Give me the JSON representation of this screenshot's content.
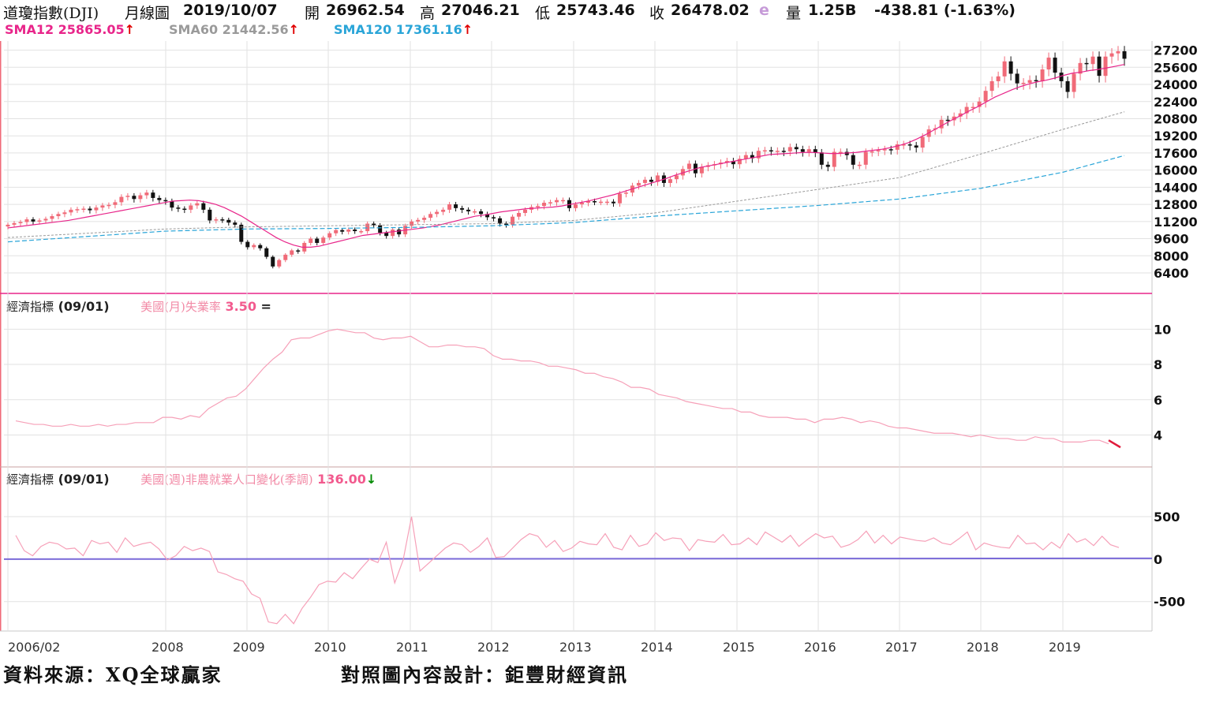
{
  "header": {
    "symbol": "道瓊指數(DJI)",
    "period": "月線圖",
    "date": "2019/10/07",
    "open_label": "開",
    "open": "26962.54",
    "high_label": "高",
    "high": "27046.21",
    "low_label": "低",
    "low": "25743.46",
    "close_label": "收",
    "close": "26478.02",
    "close_flag": "e",
    "volume_label": "量",
    "volume": "1.25B",
    "change": "-438.81 (-1.63%)"
  },
  "sma": [
    {
      "label": "SMA12 25865.05",
      "arrow": "↑",
      "color": "#e8258a"
    },
    {
      "label": "SMA60 21442.56",
      "arrow": "↑",
      "color": "#9a9a9a"
    },
    {
      "label": "SMA120 17361.16",
      "arrow": "↑",
      "color": "#2aa5d8"
    }
  ],
  "panel2": {
    "title": "經濟指標",
    "date": "(09/01)",
    "series": "美國(月)失業率",
    "value": "3.50",
    "mark": "="
  },
  "panel3": {
    "title": "經濟指標",
    "date": "(09/01)",
    "series": "美國(週)非農就業人口變化(季調)",
    "value": "136.00",
    "arrow": "↓"
  },
  "footer": {
    "source": "資料來源：XQ全球贏家",
    "design": "對照圖內容設計：鉅豐財經資訊"
  },
  "colors": {
    "up_candle": "#f06a78",
    "down_candle": "#111111",
    "sma12": "#e8258a",
    "sma60": "#9a9a9a",
    "sma120": "#2aa5d8",
    "indicator": "#f6a0b8",
    "zero_line": "#7a6ad8",
    "grid": "#e2e2e2"
  },
  "chart_data": [
    {
      "type": "candlestick",
      "title": "道瓊指數(DJI) 月線圖",
      "x": [
        "2006/02",
        "2008",
        "2009",
        "2010",
        "2011",
        "2012",
        "2013",
        "2014",
        "2015",
        "2016",
        "2017",
        "2018",
        "2019"
      ],
      "y_ticks": [
        6400,
        8000,
        9600,
        11200,
        12800,
        14400,
        16000,
        17600,
        19200,
        20800,
        22400,
        24000,
        25600,
        27200
      ],
      "ylim": [
        5000,
        28200
      ],
      "grid": true,
      "series": [
        {
          "name": "SMA12",
          "value": 25865.05
        },
        {
          "name": "SMA60",
          "value": 21442.56
        },
        {
          "name": "SMA120",
          "value": 17361.16
        }
      ],
      "closes": [
        10900,
        11050,
        11150,
        11400,
        11200,
        11300,
        11450,
        11700,
        11900,
        12050,
        12300,
        12350,
        12400,
        12250,
        12500,
        12700,
        12750,
        13000,
        13500,
        13600,
        13300,
        13650,
        13900,
        13400,
        13200,
        13100,
        12500,
        12400,
        12300,
        12700,
        12900,
        12300,
        11300,
        11400,
        11350,
        11100,
        10900,
        9300,
        8800,
        9000,
        8700,
        7900,
        7000,
        7600,
        8100,
        8500,
        8400,
        9200,
        9600,
        9200,
        9700,
        10100,
        10400,
        10250,
        10450,
        10300,
        10300,
        11000,
        10850,
        10150,
        9850,
        10450,
        10000,
        10800,
        11200,
        11350,
        11550,
        11900,
        12100,
        12300,
        12800,
        12450,
        12300,
        12150,
        12150,
        11900,
        11600,
        11500,
        11000,
        10900,
        11650,
        12000,
        12300,
        12550,
        12650,
        12950,
        13000,
        13200,
        13200,
        12450,
        12800,
        12950,
        13100,
        13050,
        13050,
        13050,
        12900,
        13800,
        13900,
        14550,
        14800,
        15100,
        14900,
        15500,
        14800,
        15150,
        15500,
        16100,
        16600,
        15700,
        16300,
        16450,
        16550,
        16700,
        16850,
        16550,
        17050,
        17400,
        17100,
        17800,
        17850,
        17800,
        17800,
        17750,
        18150,
        17950,
        17700,
        17950,
        17650,
        16500,
        16300,
        17700,
        17700,
        17400,
        16500,
        16500,
        17700,
        17750,
        17850,
        17950,
        17900,
        18400,
        18400,
        18300,
        18100,
        19100,
        19800,
        19900,
        20700,
        20650,
        21000,
        21300,
        21900,
        21900,
        22400,
        23400,
        24300,
        24750,
        26150,
        25000,
        24100,
        24150,
        24400,
        24300,
        25400,
        26500,
        25100,
        24300,
        23300,
        25000,
        26000,
        25900,
        26600,
        24800,
        26600,
        26900,
        27100,
        26400
      ],
      "opens_note": "candles reconstructed; values read approximately from axis",
      "sma12": [
        10600,
        10700,
        10800,
        10900,
        11000,
        11100,
        11200,
        11300,
        11450,
        11600,
        11750,
        11900,
        12050,
        12200,
        12350,
        12500,
        12650,
        12800,
        12950,
        13100,
        13150,
        13200,
        13150,
        13000,
        12800,
        12500,
        12100,
        11700,
        11200,
        10700,
        10200,
        9700,
        9300,
        9000,
        8800,
        8800,
        8900,
        9100,
        9300,
        9500,
        9700,
        9900,
        10000,
        10100,
        10200,
        10300,
        10400,
        10500,
        10600,
        10750,
        10900,
        11100,
        11300,
        11500,
        11700,
        11800,
        11950,
        12100,
        12200,
        12300,
        12400,
        12450,
        12500,
        12550,
        12650,
        12800,
        12950,
        13100,
        13300,
        13500,
        13700,
        13950,
        14200,
        14450,
        14700,
        14950,
        15200,
        15500,
        15750,
        16000,
        16250,
        16400,
        16550,
        16700,
        16850,
        17000,
        17150,
        17300,
        17450,
        17500,
        17550,
        17600,
        17650,
        17650,
        17600,
        17550,
        17550,
        17600,
        17650,
        17750,
        17850,
        17950,
        18100,
        18300,
        18550,
        18900,
        19300,
        19750,
        20200,
        20650,
        21050,
        21500,
        21900,
        22350,
        22800,
        23150,
        23500,
        23800,
        24050,
        24250,
        24400,
        24600,
        24850,
        25050,
        25150,
        25300,
        25400,
        25550,
        25700,
        25865
      ]
    },
    {
      "type": "line",
      "title": "美國(月)失業率",
      "ylim": [
        2.5,
        11.0
      ],
      "y_ticks": [
        4,
        6,
        8,
        10
      ],
      "last_value": 3.5,
      "values": [
        4.8,
        4.7,
        4.6,
        4.6,
        4.5,
        4.5,
        4.6,
        4.5,
        4.5,
        4.6,
        4.5,
        4.6,
        4.6,
        4.7,
        4.7,
        4.7,
        5.0,
        5.0,
        4.9,
        5.1,
        5.0,
        5.5,
        5.8,
        6.1,
        6.2,
        6.6,
        7.2,
        7.8,
        8.3,
        8.7,
        9.4,
        9.5,
        9.5,
        9.7,
        9.9,
        10.0,
        9.9,
        9.8,
        9.8,
        9.5,
        9.4,
        9.5,
        9.5,
        9.6,
        9.3,
        9.0,
        9.0,
        9.1,
        9.1,
        9.0,
        9.0,
        8.9,
        8.5,
        8.3,
        8.3,
        8.2,
        8.2,
        8.1,
        7.9,
        7.9,
        7.8,
        7.7,
        7.5,
        7.5,
        7.3,
        7.2,
        7.0,
        6.7,
        6.7,
        6.6,
        6.3,
        6.2,
        6.1,
        5.9,
        5.8,
        5.7,
        5.6,
        5.5,
        5.5,
        5.3,
        5.3,
        5.1,
        5.0,
        5.0,
        5.0,
        4.9,
        4.9,
        4.7,
        4.9,
        4.9,
        5.0,
        4.9,
        4.7,
        4.8,
        4.7,
        4.5,
        4.4,
        4.4,
        4.3,
        4.2,
        4.1,
        4.1,
        4.1,
        4.0,
        3.9,
        4.0,
        3.9,
        3.8,
        3.8,
        3.7,
        3.7,
        3.9,
        3.8,
        3.8,
        3.6,
        3.6,
        3.6,
        3.7,
        3.7,
        3.5
      ]
    },
    {
      "type": "line",
      "title": "美國(週)非農就業人口變化(季調)",
      "ylim": [
        -800,
        900
      ],
      "y_ticks": [
        500,
        0,
        -500
      ],
      "last_value": 136.0,
      "values": [
        280,
        100,
        40,
        150,
        200,
        180,
        120,
        130,
        40,
        220,
        180,
        200,
        80,
        250,
        150,
        180,
        200,
        120,
        -10,
        40,
        150,
        100,
        130,
        90,
        -150,
        -180,
        -230,
        -260,
        -410,
        -460,
        -740,
        -760,
        -650,
        -760,
        -580,
        -450,
        -300,
        -260,
        -270,
        -160,
        -230,
        -110,
        0,
        -40,
        200,
        -280,
        -10,
        500,
        -140,
        -50,
        40,
        130,
        190,
        170,
        80,
        150,
        250,
        20,
        30,
        130,
        230,
        300,
        270,
        140,
        220,
        90,
        130,
        210,
        180,
        170,
        300,
        140,
        110,
        280,
        150,
        180,
        310,
        220,
        250,
        240,
        100,
        230,
        210,
        200,
        290,
        170,
        180,
        250,
        170,
        320,
        260,
        200,
        280,
        150,
        230,
        300,
        250,
        270,
        140,
        170,
        230,
        330,
        190,
        280,
        180,
        260,
        240,
        220,
        210,
        250,
        190,
        170,
        240,
        320,
        110,
        190,
        160,
        140,
        130,
        280,
        180,
        190,
        110,
        200,
        130,
        300,
        200,
        240,
        160,
        270,
        170,
        136
      ]
    }
  ]
}
